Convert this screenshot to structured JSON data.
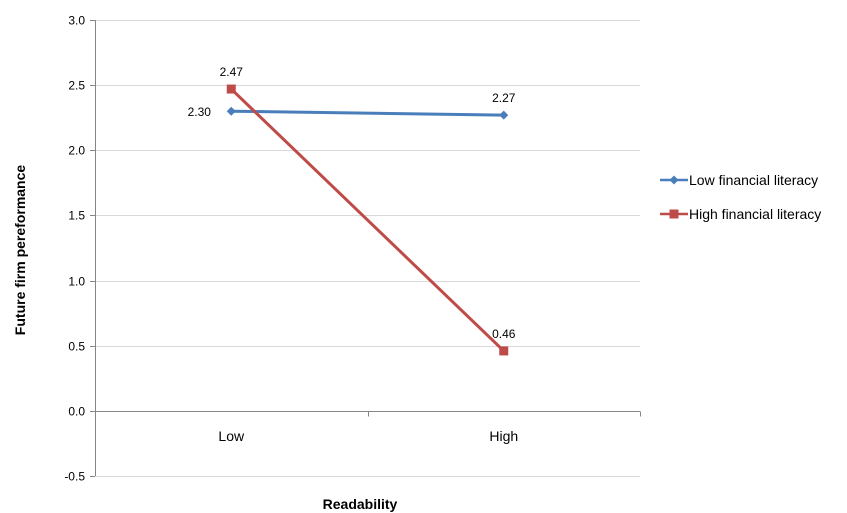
{
  "chart_data": {
    "type": "line",
    "categories": [
      "Low",
      "High"
    ],
    "series": [
      {
        "name": "Low financial literacy",
        "values": [
          2.3,
          2.27
        ],
        "labels": [
          "2.30",
          "2.27"
        ],
        "color": "#4a7ebb",
        "marker": "diamond"
      },
      {
        "name": "High financial literacy",
        "values": [
          2.47,
          0.46
        ],
        "labels": [
          "2.47",
          "0.46"
        ],
        "color": "#be4b48",
        "marker": "square"
      }
    ],
    "xlabel": "Readability",
    "ylabel": "Future firm pereformance",
    "ylim": [
      -0.5,
      3.0
    ],
    "yticks": [
      -0.5,
      0.0,
      0.5,
      1.0,
      1.5,
      2.0,
      2.5,
      3.0
    ],
    "ytick_labels": [
      "-0.5",
      "0.0",
      "0.5",
      "1.0",
      "1.5",
      "2.0",
      "2.5",
      "3.0"
    ],
    "grid": true,
    "legend_position": "right",
    "gridline_color": "#d9d9d9",
    "axis_color": "#868686"
  }
}
